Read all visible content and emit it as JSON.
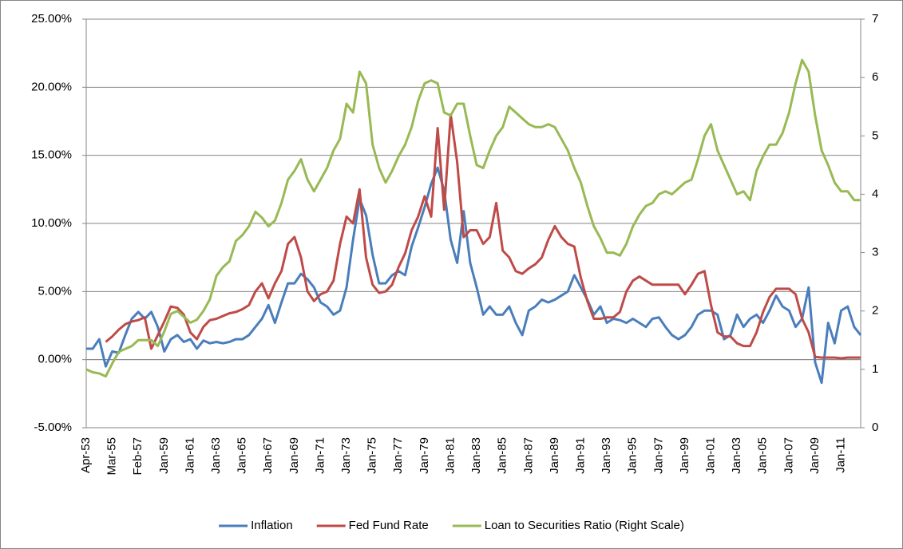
{
  "chart_data": {
    "type": "line",
    "categories": [
      "Apr-53",
      null,
      null,
      null,
      "Mar-55",
      null,
      null,
      null,
      "Feb-57",
      null,
      null,
      null,
      "Jan-59",
      null,
      null,
      null,
      "Jan-61",
      null,
      null,
      null,
      "Jan-63",
      null,
      null,
      null,
      "Jan-65",
      null,
      null,
      null,
      "Jan-67",
      null,
      null,
      null,
      "Jan-69",
      null,
      null,
      null,
      "Jan-71",
      null,
      null,
      null,
      "Jan-73",
      null,
      null,
      null,
      "Jan-75",
      null,
      null,
      null,
      "Jan-77",
      null,
      null,
      null,
      "Jan-79",
      null,
      null,
      null,
      "Jan-81",
      null,
      null,
      null,
      "Jan-83",
      null,
      null,
      null,
      "Jan-85",
      null,
      null,
      null,
      "Jan-87",
      null,
      null,
      null,
      "Jan-89",
      null,
      null,
      null,
      "Jan-91",
      null,
      null,
      null,
      "Jan-93",
      null,
      null,
      null,
      "Jan-95",
      null,
      null,
      null,
      "Jan-97",
      null,
      null,
      null,
      "Jan-99",
      null,
      null,
      null,
      "Jan-01",
      null,
      null,
      null,
      "Jan-03",
      null,
      null,
      null,
      "Jan-05",
      null,
      null,
      null,
      "Jan-07",
      null,
      null,
      null,
      "Jan-09",
      null,
      null,
      null,
      "Jan-11",
      null,
      null,
      null
    ],
    "series": [
      {
        "name": "Inflation",
        "color": "#4a7ebb",
        "values": [
          0.8,
          0.8,
          1.5,
          -0.5,
          0.6,
          0.5,
          1.8,
          3.0,
          3.5,
          3.0,
          3.5,
          2.4,
          0.6,
          1.5,
          1.8,
          1.3,
          1.5,
          0.8,
          1.4,
          1.2,
          1.3,
          1.2,
          1.3,
          1.5,
          1.5,
          1.8,
          2.4,
          3.0,
          4.0,
          2.7,
          4.2,
          5.6,
          5.6,
          6.3,
          5.9,
          5.3,
          4.2,
          3.9,
          3.3,
          3.6,
          5.3,
          8.8,
          11.8,
          10.6,
          7.7,
          5.6,
          5.6,
          6.2,
          6.5,
          6.2,
          8.3,
          9.7,
          11.2,
          12.9,
          14.1,
          12.4,
          8.8,
          7.1,
          10.9,
          7.1,
          5.3,
          3.3,
          3.9,
          3.3,
          3.3,
          3.9,
          2.7,
          1.8,
          3.6,
          3.9,
          4.4,
          4.2,
          4.4,
          4.7,
          5.0,
          6.2,
          5.3,
          4.4,
          3.3,
          3.9,
          2.7,
          3.0,
          2.9,
          2.7,
          3.0,
          2.7,
          2.4,
          3.0,
          3.1,
          2.4,
          1.8,
          1.5,
          1.8,
          2.4,
          3.3,
          3.6,
          3.6,
          3.3,
          1.5,
          1.8,
          3.3,
          2.4,
          3.0,
          3.3,
          2.7,
          3.6,
          4.7,
          3.9,
          3.6,
          2.4,
          3.0,
          5.3,
          -0.2,
          -1.7,
          2.7,
          1.2,
          3.6,
          3.9,
          2.4,
          1.8
        ]
      },
      {
        "name": "Fed Fund Rate",
        "color": "#be4b48",
        "values": [
          null,
          null,
          null,
          1.3,
          1.7,
          2.2,
          2.6,
          2.8,
          2.9,
          3.1,
          0.8,
          1.8,
          2.8,
          3.9,
          3.8,
          3.3,
          2.0,
          1.5,
          2.4,
          2.9,
          3.0,
          3.2,
          3.4,
          3.5,
          3.7,
          4.0,
          5.0,
          5.6,
          4.5,
          5.6,
          6.5,
          8.5,
          9.0,
          7.5,
          5.0,
          4.3,
          4.8,
          5.0,
          5.8,
          8.5,
          10.5,
          10.0,
          12.5,
          7.5,
          5.5,
          4.9,
          5.0,
          5.5,
          6.8,
          7.8,
          9.5,
          10.5,
          12.0,
          10.5,
          17.0,
          11.0,
          18.0,
          14.5,
          9.0,
          9.5,
          9.5,
          8.5,
          9.0,
          11.5,
          8.0,
          7.5,
          6.5,
          6.3,
          6.7,
          7.0,
          7.5,
          8.8,
          9.8,
          9.0,
          8.5,
          8.3,
          6.0,
          4.3,
          3.0,
          3.0,
          3.1,
          3.1,
          3.5,
          5.0,
          5.8,
          6.1,
          5.8,
          5.5,
          5.5,
          5.5,
          5.5,
          5.5,
          4.8,
          5.5,
          6.3,
          6.5,
          4.0,
          2.0,
          1.7,
          1.7,
          1.2,
          1.0,
          1.0,
          2.0,
          3.5,
          4.6,
          5.2,
          5.2,
          5.2,
          4.8,
          3.0,
          2.0,
          0.2,
          0.15,
          0.15,
          0.15,
          0.1,
          0.15,
          0.15,
          0.15
        ]
      },
      {
        "name": "Loan to Securities Ratio (Right Scale)",
        "color": "#98b954",
        "axis": "y2",
        "values": [
          1.0,
          0.95,
          0.93,
          0.88,
          1.1,
          1.3,
          1.35,
          1.4,
          1.5,
          1.5,
          1.5,
          1.4,
          1.65,
          1.95,
          2.0,
          1.9,
          1.8,
          1.85,
          2.0,
          2.2,
          2.6,
          2.75,
          2.85,
          3.2,
          3.3,
          3.45,
          3.7,
          3.6,
          3.45,
          3.55,
          3.85,
          4.25,
          4.4,
          4.6,
          4.25,
          4.05,
          4.25,
          4.45,
          4.75,
          4.95,
          5.55,
          5.4,
          6.1,
          5.9,
          4.85,
          4.45,
          4.2,
          4.4,
          4.65,
          4.85,
          5.15,
          5.6,
          5.9,
          5.95,
          5.9,
          5.4,
          5.35,
          5.55,
          5.55,
          5.0,
          4.5,
          4.45,
          4.75,
          5.0,
          5.15,
          5.5,
          5.4,
          5.3,
          5.2,
          5.15,
          5.15,
          5.2,
          5.15,
          4.95,
          4.75,
          4.45,
          4.2,
          3.8,
          3.45,
          3.25,
          3.0,
          3.0,
          2.95,
          3.15,
          3.45,
          3.65,
          3.8,
          3.85,
          4.0,
          4.05,
          4.0,
          4.1,
          4.2,
          4.25,
          4.6,
          5.0,
          5.2,
          4.75,
          4.5,
          4.25,
          4.0,
          4.05,
          3.9,
          4.4,
          4.65,
          4.85,
          4.85,
          5.05,
          5.4,
          5.9,
          6.3,
          6.1,
          5.35,
          4.75,
          4.5,
          4.2,
          4.05,
          4.05,
          3.9,
          3.9
        ]
      }
    ],
    "ylim": [
      -5,
      25
    ],
    "yticks": [
      {
        "value": -5,
        "label": "-5.00%"
      },
      {
        "value": 0,
        "label": "0.00%"
      },
      {
        "value": 5,
        "label": "5.00%"
      },
      {
        "value": 10,
        "label": "10.00%"
      },
      {
        "value": 15,
        "label": "15.00%"
      },
      {
        "value": 20,
        "label": "20.00%"
      },
      {
        "value": 25,
        "label": "25.00%"
      }
    ],
    "y2lim": [
      0,
      7
    ],
    "y2ticks": [
      0,
      1,
      2,
      3,
      4,
      5,
      6,
      7
    ],
    "grid": true,
    "legend": "bottom"
  }
}
